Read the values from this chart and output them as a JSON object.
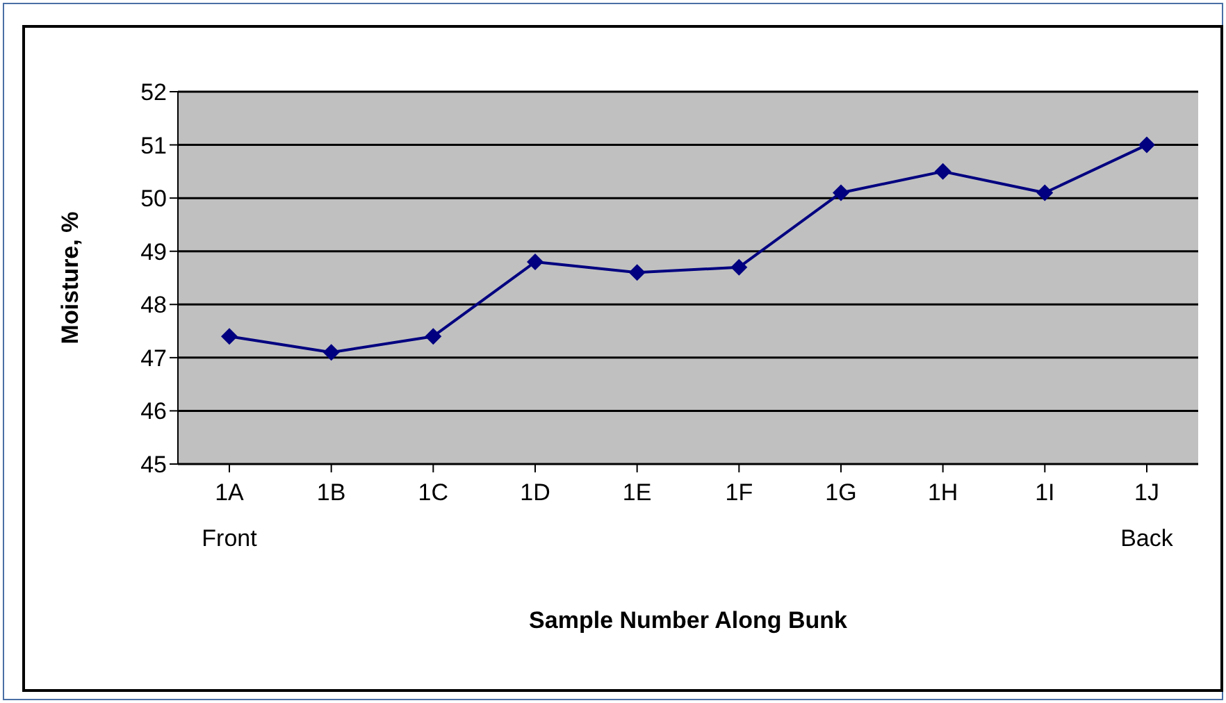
{
  "chart_data": {
    "type": "line",
    "xlabel": "Sample Number Along Bunk",
    "ylabel": "Moisture, %",
    "categories": [
      "1A\nFront",
      "1B",
      "1C",
      "1D",
      "1E",
      "1F",
      "1G",
      "1H",
      "1I",
      "1J\nBack"
    ],
    "series": [
      {
        "color": "#000080",
        "values": [
          47.4,
          47.1,
          47.4,
          48.8,
          48.6,
          48.7,
          50.1,
          50.5,
          50.1,
          51.0
        ]
      }
    ],
    "ylim": [
      45,
      52
    ],
    "yticks": [
      45,
      46,
      47,
      48,
      49,
      50,
      51,
      52
    ],
    "grid": "y",
    "marker": "diamond",
    "line_style": "solid",
    "legend": false
  }
}
